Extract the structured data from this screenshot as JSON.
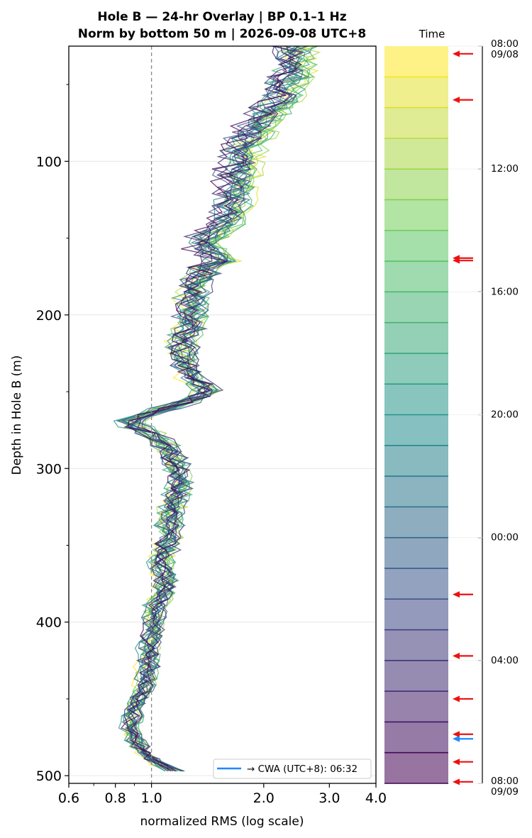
{
  "chart_data": {
    "type": "line",
    "title_line1": "Hole B — 24-hr Overlay  |  BP 0.1–1 Hz",
    "title_line2": "Norm by bottom 50 m  |  2026-09-08 UTC+8",
    "xlabel": "normalized RMS  (log scale)",
    "ylabel": "Depth in Hole B (m)",
    "x_scale": "log",
    "xlim": [
      0.6,
      4.0
    ],
    "ylim": [
      505,
      25
    ],
    "x_ticks": [
      0.6,
      0.8,
      1.0,
      2.0,
      3.0,
      4.0
    ],
    "x_tick_labels": [
      "0.6",
      "0.8",
      "1.0",
      "2.0",
      "3.0",
      "4.0"
    ],
    "y_ticks": [
      100,
      200,
      300,
      400,
      500
    ],
    "y_tick_labels": [
      "100",
      "200",
      "300",
      "400",
      "500"
    ],
    "reference_line_x": 1.0,
    "grid": true,
    "legend_position": "lower-right",
    "legend_label": "→ CWA (UTC+8): 06:32",
    "legend_color": "#1e88ff",
    "depth_profile": {
      "depth": [
        25,
        45,
        60,
        75,
        90,
        100,
        120,
        140,
        152,
        160,
        165,
        180,
        200,
        220,
        240,
        250,
        255,
        262,
        268,
        272,
        280,
        295,
        310,
        330,
        345,
        360,
        375,
        390,
        400,
        420,
        440,
        455,
        470,
        480,
        490,
        498
      ],
      "median_rms": [
        2.3,
        2.25,
        2.1,
        1.85,
        1.7,
        1.65,
        1.6,
        1.5,
        1.3,
        1.38,
        1.45,
        1.3,
        1.28,
        1.22,
        1.25,
        1.42,
        1.3,
        1.05,
        0.88,
        0.9,
        1.05,
        1.15,
        1.2,
        1.12,
        1.12,
        1.07,
        1.1,
        1.03,
        1.02,
        0.98,
        0.97,
        0.9,
        0.88,
        0.92,
        1.0,
        1.18
      ],
      "n_traces": 24,
      "start_spread": 0.14,
      "end_spread": 0.06
    },
    "colorbar": {
      "title": "Time",
      "tick_labels": [
        "08:00\n09/08",
        "12:00",
        "16:00",
        "20:00",
        "00:00",
        "04:00",
        "08:00\n09/09"
      ],
      "tick_hours": [
        0,
        4,
        8,
        12,
        16,
        20,
        24
      ],
      "bands": 24,
      "red_arrow_hours": [
        0.25,
        1.75,
        6.9,
        6.98,
        17.85,
        19.85,
        21.25,
        22.4,
        23.3,
        23.95
      ],
      "blue_arrow_hour": 22.55,
      "red_color": "#ee1111",
      "blue_color": "#1e88ff"
    },
    "colormap": [
      "#fde725",
      "#5ec962",
      "#21918c",
      "#3b528b",
      "#440154"
    ]
  }
}
